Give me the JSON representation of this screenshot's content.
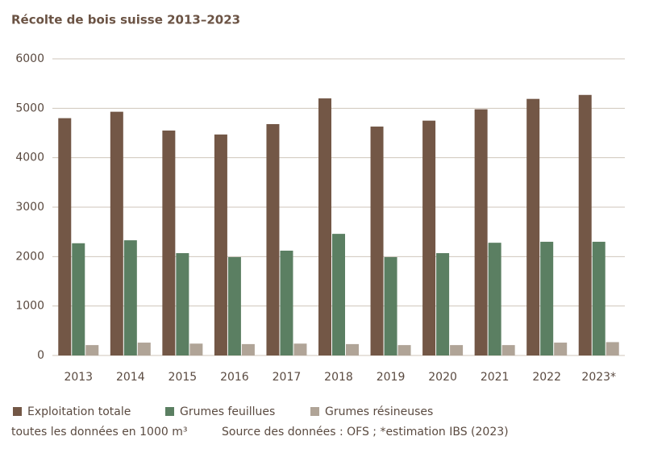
{
  "chart_data": {
    "type": "bar",
    "title": "Récolte de bois suisse 2013–2023",
    "categories": [
      "2013",
      "2014",
      "2015",
      "2016",
      "2017",
      "2018",
      "2019",
      "2020",
      "2021",
      "2022",
      "2023*"
    ],
    "series": [
      {
        "name": "Exploitation totale",
        "color": "#735746",
        "values": [
          4800,
          4930,
          4550,
          4470,
          4680,
          5200,
          4630,
          4750,
          4980,
          5190,
          5270
        ]
      },
      {
        "name": "Grumes feuillues",
        "color": "#5b7f62",
        "values": [
          2270,
          2330,
          2070,
          1990,
          2120,
          2460,
          1990,
          2070,
          2280,
          2300,
          2300
        ]
      },
      {
        "name": "Grumes résineuses",
        "color": "#b0a497",
        "values": [
          210,
          260,
          240,
          230,
          240,
          230,
          210,
          210,
          210,
          260,
          270
        ]
      }
    ],
    "ylim": [
      0,
      6000
    ],
    "yticks": [
      0,
      1000,
      2000,
      3000,
      4000,
      5000,
      6000
    ],
    "grid": true,
    "note": "toutes les données en 1000 m³",
    "source": "Source des données : OFS ; *estimation IBS (2023)"
  }
}
